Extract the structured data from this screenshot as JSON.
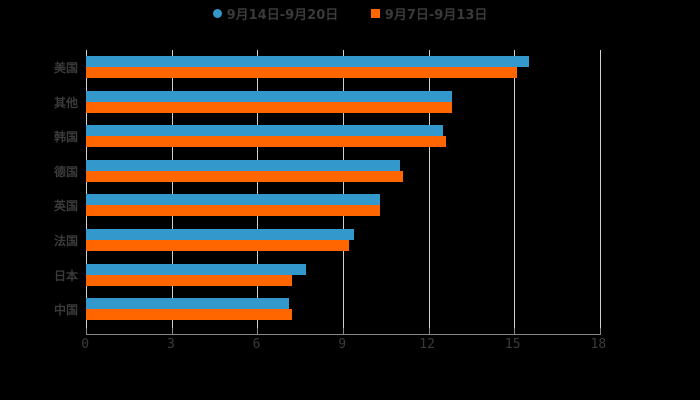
{
  "legend": [
    {
      "label": "9月14日-9月20日",
      "color": "#3399cc",
      "marker": "circle"
    },
    {
      "label": "9月7日-9月13日",
      "color": "#ff6600",
      "marker": "square"
    }
  ],
  "colors": {
    "background": "#000000",
    "grid": "#cfcfcf",
    "text": "#3a3a3a"
  },
  "chart_data": {
    "type": "bar",
    "orientation": "horizontal",
    "title": "",
    "xlabel": "",
    "ylabel": "",
    "categories": [
      "美国",
      "其他",
      "韩国",
      "德国",
      "英国",
      "法国",
      "日本",
      "中国"
    ],
    "series": [
      {
        "name": "9月14日-9月20日",
        "color": "#3399cc",
        "values": [
          15.5,
          12.8,
          12.5,
          11.0,
          10.3,
          9.4,
          7.7,
          7.1
        ]
      },
      {
        "name": "9月7日-9月13日",
        "color": "#ff6600",
        "values": [
          15.1,
          12.8,
          12.6,
          11.1,
          10.3,
          9.2,
          7.2,
          7.2
        ]
      }
    ],
    "xlim": [
      0,
      18
    ],
    "xticks": [
      "0",
      "3",
      "6",
      "9",
      "12",
      "15",
      "18"
    ],
    "grid": true,
    "legend_position": "top"
  }
}
